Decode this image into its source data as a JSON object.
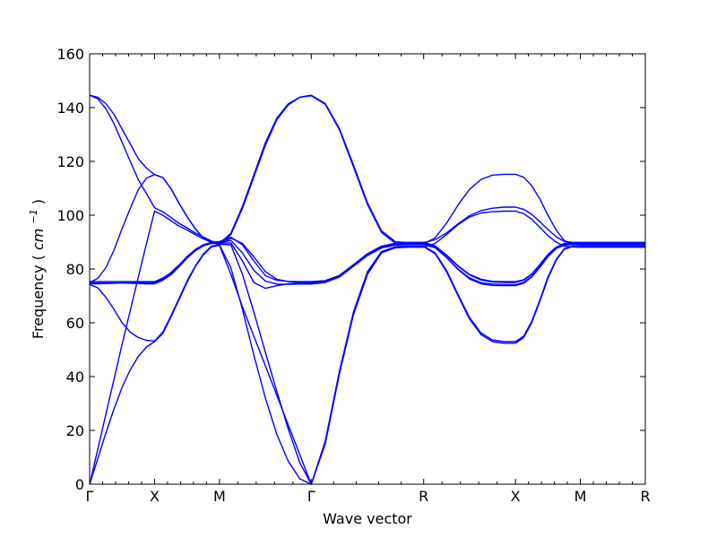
{
  "chart_data": {
    "type": "line",
    "title": "",
    "xlabel": "Wave vector",
    "ylabel": {
      "prefix": "Frequency (",
      "unit": "cm",
      "exponent": "−1",
      "suffix": ")"
    },
    "ylim": [
      0,
      160
    ],
    "yticks": [
      0,
      20,
      40,
      60,
      80,
      100,
      120,
      140,
      160
    ],
    "ytick_labels": [
      "0",
      "20",
      "40",
      "60",
      "80",
      "100",
      "120",
      "140",
      "160"
    ],
    "xticks": [
      {
        "label": "Γ",
        "x": 0.0
      },
      {
        "label": "X",
        "x": 0.5
      },
      {
        "label": "M",
        "x": 1.0
      },
      {
        "label": "Γ",
        "x": 1.707
      },
      {
        "label": "R",
        "x": 2.573
      },
      {
        "label": "X",
        "x": 3.28
      },
      {
        "label": "M",
        "x": 3.78
      },
      {
        "label": "R",
        "x": 4.28
      }
    ],
    "xlim": [
      0,
      4.28
    ],
    "grid": false,
    "legend": "none",
    "line_color": "#0000ff",
    "series": [
      {
        "x": [
          0,
          0.063,
          0.125,
          0.188,
          0.25,
          0.313,
          0.375,
          0.438,
          0.5,
          0.563,
          0.625,
          0.688,
          0.75,
          0.813,
          0.875,
          0.938,
          1.0,
          1.088,
          1.177,
          1.265,
          1.354,
          1.442,
          1.53,
          1.619,
          1.707,
          1.815,
          1.924,
          2.032,
          2.14,
          2.248,
          2.356,
          2.465,
          2.573,
          2.661,
          2.749,
          2.838,
          2.926,
          3.015,
          3.103,
          3.192,
          3.28,
          3.343,
          3.405,
          3.468,
          3.53,
          3.593,
          3.655,
          3.718,
          3.78,
          3.843,
          3.905,
          3.968,
          4.03,
          4.093,
          4.155,
          4.218,
          4.28
        ],
        "y": [
          144.6,
          143.3,
          139.6,
          134.0,
          127.1,
          120.0,
          113.2,
          108.0,
          102.8,
          101.3,
          99.2,
          97.0,
          95.3,
          93.4,
          91.9,
          90.4,
          89.5,
          93.3,
          103.3,
          115.0,
          127.0,
          136.1,
          141.4,
          143.9,
          144.6,
          141.5,
          132.2,
          118.7,
          104.6,
          94.2,
          90.1,
          89.8,
          89.8,
          90.9,
          93.4,
          96.8,
          99.8,
          101.7,
          102.6,
          103.0,
          103.0,
          102.2,
          100.3,
          97.6,
          94.7,
          92.0,
          90.3,
          89.9,
          89.8,
          89.8,
          89.8,
          89.8,
          89.8,
          89.8,
          89.8,
          89.8,
          89.8
        ]
      },
      {
        "x": [
          0,
          0.063,
          0.125,
          0.188,
          0.25,
          0.313,
          0.375,
          0.438,
          0.5,
          0.563,
          0.625,
          0.688,
          0.75,
          0.813,
          0.875,
          0.938,
          1.0,
          1.088,
          1.177,
          1.265,
          1.354,
          1.442,
          1.53,
          1.619,
          1.707,
          1.815,
          1.924,
          2.032,
          2.14,
          2.248,
          2.356,
          2.465,
          2.573,
          2.661,
          2.749,
          2.838,
          2.926,
          3.015,
          3.103,
          3.192,
          3.28,
          3.343,
          3.405,
          3.468,
          3.53,
          3.593,
          3.655,
          3.718,
          3.78,
          3.843,
          3.905,
          3.968,
          4.03,
          4.093,
          4.155,
          4.218,
          4.28
        ],
        "y": [
          144.6,
          143.8,
          141.5,
          137.5,
          132.0,
          126.5,
          121.0,
          117.5,
          115.1,
          114.0,
          110.0,
          104.5,
          99.5,
          95.0,
          91.5,
          89.8,
          89.2,
          92.8,
          102.5,
          114.2,
          126.0,
          135.5,
          141.0,
          143.8,
          144.4,
          141.2,
          131.8,
          118.0,
          104.0,
          93.6,
          89.5,
          89.3,
          89.3,
          91.6,
          97.0,
          103.8,
          109.6,
          113.3,
          114.9,
          115.2,
          115.2,
          114.1,
          111.0,
          106.0,
          100.0,
          94.5,
          90.6,
          89.3,
          89.0,
          89.0,
          89.0,
          89.0,
          89.0,
          89.0,
          89.0,
          89.0,
          89.0
        ]
      },
      {
        "x": [
          0,
          0.063,
          0.125,
          0.188,
          0.25,
          0.313,
          0.375,
          0.438,
          0.5,
          0.563,
          0.625,
          0.688,
          0.75,
          0.813,
          0.875,
          0.938,
          1.0,
          1.088,
          1.177,
          1.265,
          1.354,
          1.442,
          1.53,
          1.619,
          1.707,
          1.815,
          1.924,
          2.032,
          2.14,
          2.248,
          2.356,
          2.465,
          2.573,
          2.661,
          2.749,
          2.838,
          2.926,
          3.015,
          3.103,
          3.192,
          3.28,
          3.343,
          3.405,
          3.468,
          3.53,
          3.593,
          3.655,
          3.718,
          3.78,
          3.843,
          3.905,
          3.968,
          4.03,
          4.093,
          4.155,
          4.218,
          4.28
        ],
        "y": [
          75.0,
          76.5,
          80.5,
          87.0,
          95.0,
          102.5,
          109.5,
          113.8,
          115.1,
          114.0,
          110.0,
          104.5,
          99.5,
          95.0,
          91.5,
          89.8,
          89.2,
          91.5,
          89.5,
          84.5,
          79.0,
          76.2,
          75.3,
          75.1,
          75.0,
          75.5,
          77.5,
          81.5,
          85.5,
          88.3,
          89.4,
          89.6,
          89.6,
          88.3,
          85.0,
          81.0,
          77.8,
          75.9,
          75.2,
          75.0,
          75.0,
          75.8,
          78.0,
          81.5,
          85.2,
          87.9,
          89.3,
          89.6,
          89.6,
          89.6,
          89.6,
          89.6,
          89.6,
          89.6,
          89.6,
          89.6,
          89.6
        ]
      },
      {
        "x": [
          0,
          0.063,
          0.125,
          0.188,
          0.25,
          0.313,
          0.375,
          0.438,
          0.5,
          0.563,
          0.625,
          0.688,
          0.75,
          0.813,
          0.875,
          0.938,
          1.0,
          1.088,
          1.177,
          1.265,
          1.354,
          1.442,
          1.53,
          1.619,
          1.707,
          1.815,
          1.924,
          2.032,
          2.14,
          2.248,
          2.356,
          2.465,
          2.573,
          2.661,
          2.749,
          2.838,
          2.926,
          3.015,
          3.103,
          3.192,
          3.28,
          3.343,
          3.405,
          3.468,
          3.53,
          3.593,
          3.655,
          3.718,
          3.78,
          3.843,
          3.905,
          3.968,
          4.03,
          4.093,
          4.155,
          4.218,
          4.28
        ],
        "y": [
          74.5,
          74.5,
          74.6,
          74.7,
          74.8,
          74.9,
          75.0,
          75.0,
          75.0,
          76.2,
          78.2,
          81.2,
          84.4,
          87.0,
          88.8,
          89.6,
          89.8,
          90.6,
          86.0,
          79.5,
          75.5,
          74.4,
          74.3,
          74.4,
          74.4,
          75.0,
          77.0,
          81.0,
          85.0,
          87.8,
          88.9,
          89.1,
          89.1,
          87.9,
          84.3,
          80.0,
          76.7,
          74.9,
          74.4,
          74.2,
          74.2,
          75.0,
          77.2,
          80.8,
          84.7,
          87.6,
          89.0,
          89.2,
          89.2,
          89.2,
          89.2,
          89.2,
          89.2,
          89.2,
          89.2,
          89.2,
          89.2
        ]
      },
      {
        "x": [
          0,
          0.063,
          0.125,
          0.188,
          0.25,
          0.313,
          0.375,
          0.438,
          0.5,
          0.563,
          0.625,
          0.688,
          0.75,
          0.813,
          0.875,
          0.938,
          1.0,
          1.088,
          1.177,
          1.265,
          1.354,
          1.442,
          1.53,
          1.619,
          1.707,
          1.815,
          1.924,
          2.032,
          2.14,
          2.248,
          2.356,
          2.465,
          2.573,
          2.661,
          2.749,
          2.838,
          2.926,
          3.015,
          3.103,
          3.192,
          3.28,
          3.343,
          3.405,
          3.468,
          3.53,
          3.593,
          3.655,
          3.718,
          3.78,
          3.843,
          3.905,
          3.968,
          4.03,
          4.093,
          4.155,
          4.218,
          4.28
        ],
        "y": [
          74.8,
          74.8,
          74.8,
          74.8,
          74.8,
          74.7,
          74.6,
          74.5,
          74.5,
          75.8,
          77.8,
          80.8,
          84.0,
          86.7,
          88.6,
          89.5,
          89.6,
          89.7,
          83.0,
          75.0,
          72.8,
          73.8,
          74.5,
          74.8,
          74.8,
          75.3,
          77.2,
          81.2,
          85.2,
          88.0,
          89.1,
          89.3,
          89.3,
          88.0,
          84.3,
          79.8,
          76.3,
          74.5,
          73.9,
          73.8,
          73.8,
          74.7,
          77.0,
          80.6,
          84.6,
          87.6,
          88.9,
          89.1,
          89.1,
          89.1,
          89.1,
          89.1,
          89.1,
          89.1,
          89.1,
          89.1,
          89.1
        ]
      },
      {
        "x": [
          0,
          0.063,
          0.125,
          0.188,
          0.25,
          0.313,
          0.375,
          0.438,
          0.5,
          0.563,
          0.625,
          0.688,
          0.75,
          0.813,
          0.875,
          0.938,
          1.0,
          1.088,
          1.177,
          1.265,
          1.354,
          1.442,
          1.53,
          1.619,
          1.707,
          1.815,
          1.924,
          2.032,
          2.14,
          2.248,
          2.356,
          2.465,
          2.573,
          2.661,
          2.749,
          2.838,
          2.926,
          3.015,
          3.103,
          3.192,
          3.28,
          3.343,
          3.405,
          3.468,
          3.53,
          3.593,
          3.655,
          3.718,
          3.78,
          3.843,
          3.905,
          3.968,
          4.03,
          4.093,
          4.155,
          4.218,
          4.28
        ],
        "y": [
          74.2,
          73.0,
          69.5,
          65.0,
          60.0,
          56.5,
          54.5,
          53.5,
          53.2,
          56.5,
          62.5,
          69.0,
          75.5,
          81.0,
          85.5,
          88.5,
          89.0,
          80.5,
          65.0,
          48.0,
          32.0,
          18.5,
          8.5,
          2.0,
          0.0,
          16.0,
          42.0,
          64.0,
          79.0,
          86.5,
          88.3,
          88.5,
          88.5,
          86.0,
          79.5,
          70.5,
          62.0,
          56.2,
          53.6,
          53.0,
          53.0,
          55.0,
          60.5,
          68.5,
          77.0,
          83.5,
          87.5,
          88.5,
          88.5,
          88.5,
          88.5,
          88.5,
          88.5,
          88.5,
          88.5,
          88.5,
          88.5
        ]
      },
      {
        "x": [
          0,
          0.063,
          0.125,
          0.188,
          0.25,
          0.313,
          0.375,
          0.438,
          0.5,
          0.563,
          0.625,
          0.688,
          0.75,
          0.813,
          0.875,
          0.938,
          1.0,
          1.088,
          1.177,
          1.265,
          1.354,
          1.442,
          1.53,
          1.619,
          1.707,
          1.815,
          1.924,
          2.032,
          2.14,
          2.248,
          2.356,
          2.465,
          2.573,
          2.661,
          2.749,
          2.838,
          2.926,
          3.015,
          3.103,
          3.192,
          3.28,
          3.343,
          3.405,
          3.468,
          3.53,
          3.593,
          3.655,
          3.718,
          3.78,
          3.843,
          3.905,
          3.968,
          4.03,
          4.093,
          4.155,
          4.218,
          4.28
        ],
        "y": [
          0.0,
          9.5,
          19.0,
          28.0,
          36.0,
          42.5,
          47.5,
          51.0,
          53.0,
          56.0,
          62.0,
          68.5,
          75.0,
          80.8,
          85.2,
          88.2,
          88.8,
          78.0,
          66.0,
          55.0,
          44.0,
          33.0,
          22.0,
          11.0,
          0.0,
          15.5,
          41.5,
          63.5,
          78.5,
          86.2,
          88.1,
          88.3,
          88.3,
          85.7,
          79.0,
          70.0,
          61.4,
          55.6,
          53.0,
          52.4,
          52.4,
          54.5,
          60.0,
          68.0,
          76.5,
          83.2,
          87.3,
          88.3,
          88.3,
          88.3,
          88.3,
          88.3,
          88.3,
          88.3,
          88.3,
          88.3,
          88.3
        ]
      },
      {
        "x": [
          0,
          0.063,
          0.125,
          0.188,
          0.25,
          0.313,
          0.375,
          0.438,
          0.5,
          0.563,
          0.625,
          0.688,
          0.75,
          0.813,
          0.875,
          0.938,
          1.0,
          1.088,
          1.177,
          1.265,
          1.354,
          1.442,
          1.53,
          1.619,
          1.707,
          1.815,
          1.924,
          2.032,
          2.14,
          2.248,
          2.356,
          2.465,
          2.573,
          2.661,
          2.749,
          2.838,
          2.926,
          3.015,
          3.103,
          3.192,
          3.28,
          3.343,
          3.405,
          3.468,
          3.53,
          3.593,
          3.655,
          3.718,
          3.78,
          3.843,
          3.905,
          3.968,
          4.03,
          4.093,
          4.155,
          4.218,
          4.28
        ],
        "y": [
          0.0,
          13.0,
          26.0,
          39.0,
          52.0,
          64.5,
          77.0,
          89.5,
          101.5,
          100.0,
          98.0,
          96.0,
          94.5,
          92.8,
          91.2,
          90.0,
          89.2,
          89.0,
          78.0,
          64.0,
          49.0,
          34.5,
          20.5,
          8.0,
          0.0,
          15.0,
          41.0,
          63.0,
          78.0,
          86.0,
          87.9,
          88.1,
          88.1,
          89.5,
          92.8,
          96.5,
          99.3,
          100.8,
          101.3,
          101.5,
          101.5,
          100.6,
          98.5,
          95.5,
          92.4,
          90.0,
          88.5,
          88.2,
          88.1,
          88.1,
          88.1,
          88.1,
          88.1,
          88.1,
          88.1,
          88.1,
          88.1
        ]
      },
      {
        "x": [
          0,
          0.063,
          0.125,
          0.188,
          0.25,
          0.313,
          0.375,
          0.438,
          0.5,
          0.563,
          0.625,
          0.688,
          0.75,
          0.813,
          0.875,
          0.938,
          1.0,
          1.088,
          1.177,
          1.265,
          1.354,
          1.442,
          1.53,
          1.619,
          1.707,
          1.815,
          1.924,
          2.032,
          2.14,
          2.248,
          2.356,
          2.465,
          2.573,
          2.661,
          2.749,
          2.838,
          2.926,
          3.015,
          3.103,
          3.192,
          3.28,
          3.343,
          3.405,
          3.468,
          3.53,
          3.593,
          3.655,
          3.718,
          3.78,
          3.843,
          3.905,
          3.968,
          4.03,
          4.093,
          4.155,
          4.218,
          4.28
        ],
        "y": [
          75.3,
          75.3,
          75.3,
          75.3,
          75.3,
          75.3,
          75.3,
          75.3,
          75.3,
          76.6,
          78.6,
          81.5,
          84.6,
          87.2,
          89.0,
          89.9,
          90.2,
          91.8,
          89.0,
          83.0,
          77.5,
          75.8,
          75.4,
          75.3,
          75.3,
          75.7,
          77.6,
          81.6,
          85.7,
          88.5,
          89.6,
          89.9,
          89.9,
          88.6,
          85.2,
          81.2,
          78.0,
          76.2,
          75.4,
          75.3,
          75.3,
          76.0,
          78.1,
          81.7,
          85.4,
          88.1,
          89.5,
          89.9,
          89.9,
          89.9,
          89.9,
          89.9,
          89.9,
          89.9,
          89.9,
          89.9,
          89.9
        ]
      }
    ]
  }
}
